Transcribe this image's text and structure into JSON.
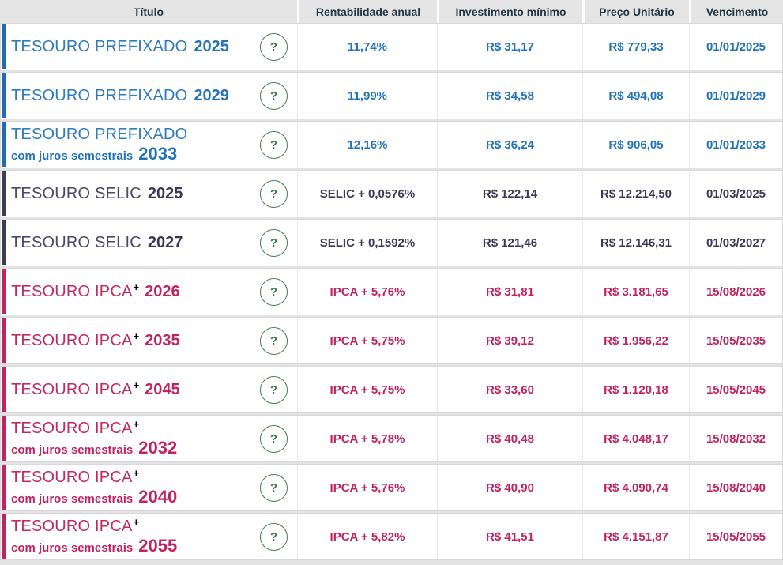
{
  "header": {
    "columns": [
      "Título",
      "Rentabilidade anual",
      "Investimento mínimo",
      "Preço Unitário",
      "Vencimento"
    ]
  },
  "help_icon": {
    "glyph": "?",
    "color": "#3e7d49"
  },
  "colors": {
    "header_bg": "#e5e5e5",
    "header_text": "#243746",
    "row_border": "#d9d9d9",
    "prefixado_accent": "#1f6cb2",
    "prefixado_text": "#2273b8",
    "selic_accent": "#3d3c55",
    "selic_text": "#3c3b57",
    "ipca_accent": "#c02360",
    "ipca_text": "#c02460"
  },
  "table": {
    "rows": [
      {
        "theme": "blue",
        "name": "TESOURO PREFIXADO",
        "sup": "",
        "year_inline": "2025",
        "subtitle": "",
        "year_sub": "",
        "help": "?",
        "rate": "11,74%",
        "min_investment": "R$ 31,17",
        "unit_price": "R$ 779,33",
        "maturity": "01/01/2025"
      },
      {
        "theme": "blue",
        "name": "TESOURO PREFIXADO",
        "sup": "",
        "year_inline": "2029",
        "subtitle": "",
        "year_sub": "",
        "help": "?",
        "rate": "11,99%",
        "min_investment": "R$ 34,58",
        "unit_price": "R$ 494,08",
        "maturity": "01/01/2029"
      },
      {
        "theme": "blue",
        "name": "TESOURO PREFIXADO",
        "sup": "",
        "year_inline": "",
        "subtitle": "com juros semestrais",
        "year_sub": "2033",
        "help": "?",
        "rate": "12,16%",
        "min_investment": "R$ 36,24",
        "unit_price": "R$ 906,05",
        "maturity": "01/01/2033"
      },
      {
        "theme": "dark",
        "name": "TESOURO SELIC",
        "sup": "",
        "year_inline": "2025",
        "subtitle": "",
        "year_sub": "",
        "help": "?",
        "rate": "SELIC + 0,0576%",
        "min_investment": "R$ 122,14",
        "unit_price": "R$ 12.214,50",
        "maturity": "01/03/2025"
      },
      {
        "theme": "dark",
        "name": "TESOURO SELIC",
        "sup": "",
        "year_inline": "2027",
        "subtitle": "",
        "year_sub": "",
        "help": "?",
        "rate": "SELIC + 0,1592%",
        "min_investment": "R$ 121,46",
        "unit_price": "R$ 12.146,31",
        "maturity": "01/03/2027"
      },
      {
        "theme": "pink",
        "name": "TESOURO IPCA",
        "sup": "+",
        "year_inline": "2026",
        "subtitle": "",
        "year_sub": "",
        "help": "?",
        "rate": "IPCA + 5,76%",
        "min_investment": "R$ 31,81",
        "unit_price": "R$ 3.181,65",
        "maturity": "15/08/2026"
      },
      {
        "theme": "pink",
        "name": "TESOURO IPCA",
        "sup": "+",
        "year_inline": "2035",
        "subtitle": "",
        "year_sub": "",
        "help": "?",
        "rate": "IPCA + 5,75%",
        "min_investment": "R$ 39,12",
        "unit_price": "R$ 1.956,22",
        "maturity": "15/05/2035"
      },
      {
        "theme": "pink",
        "name": "TESOURO IPCA",
        "sup": "+",
        "year_inline": "2045",
        "subtitle": "",
        "year_sub": "",
        "help": "?",
        "rate": "IPCA + 5,75%",
        "min_investment": "R$ 33,60",
        "unit_price": "R$ 1.120,18",
        "maturity": "15/05/2045"
      },
      {
        "theme": "pink",
        "name": "TESOURO IPCA",
        "sup": "+",
        "year_inline": "",
        "subtitle": "com juros semestrais",
        "year_sub": "2032",
        "help": "?",
        "rate": "IPCA + 5,78%",
        "min_investment": "R$ 40,48",
        "unit_price": "R$ 4.048,17",
        "maturity": "15/08/2032"
      },
      {
        "theme": "pink",
        "name": "TESOURO IPCA",
        "sup": "+",
        "year_inline": "",
        "subtitle": "com juros semestrais",
        "year_sub": "2040",
        "help": "?",
        "rate": "IPCA + 5,76%",
        "min_investment": "R$ 40,90",
        "unit_price": "R$ 4.090,74",
        "maturity": "15/08/2040"
      },
      {
        "theme": "pink",
        "name": "TESOURO IPCA",
        "sup": "+",
        "year_inline": "",
        "subtitle": "com juros semestrais",
        "year_sub": "2055",
        "help": "?",
        "rate": "IPCA + 5,82%",
        "min_investment": "R$ 41,51",
        "unit_price": "R$ 4.151,87",
        "maturity": "15/05/2055"
      }
    ]
  }
}
